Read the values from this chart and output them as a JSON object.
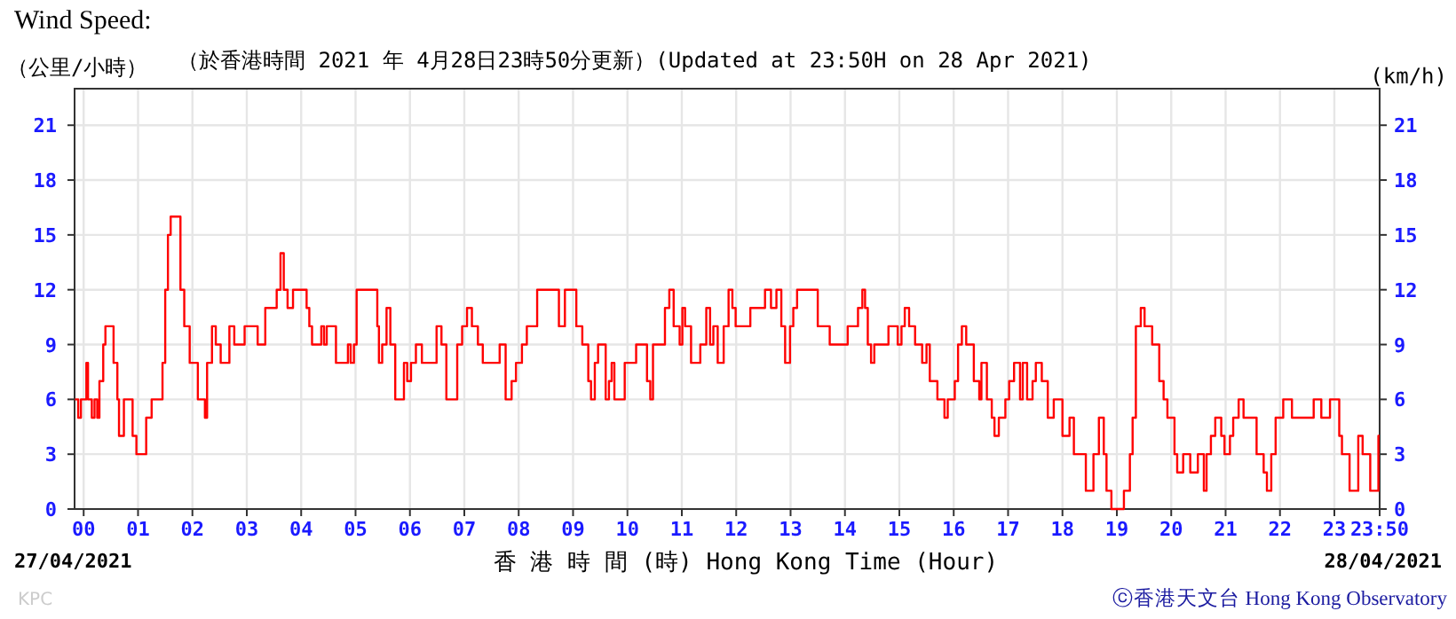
{
  "chart_data": {
    "type": "step",
    "title": "Wind Speed:",
    "subtitle": "（於香港時間 2021 年 4月28日23時50分更新）(Updated at 23:50H on 28 Apr 2021)",
    "ylabel": "（公里/小時）",
    "y2label": "(km/h)",
    "xlabel": "香 港 時 間 (時)  Hong Kong Time (Hour)",
    "annotations": [
      "27/04/2021",
      "28/04/2021",
      "KPC",
      "ⓒ香港天文台 Hong Kong Observatory"
    ],
    "x": [
      -0.16,
      -0.1,
      -0.05,
      0.05,
      0.08,
      0.15,
      0.2,
      0.25,
      0.29,
      0.36,
      0.4,
      0.51,
      0.55,
      0.62,
      0.65,
      0.72,
      0.74,
      0.85,
      0.9,
      0.97,
      1.1,
      1.15,
      1.25,
      1.36,
      1.45,
      1.5,
      1.55,
      1.6,
      1.71,
      1.78,
      1.85,
      1.95,
      2.05,
      2.1,
      2.2,
      2.23,
      2.27,
      2.36,
      2.43,
      2.52,
      2.63,
      2.68,
      2.77,
      2.9,
      2.96,
      3.14,
      3.2,
      3.28,
      3.34,
      3.5,
      3.55,
      3.62,
      3.68,
      3.75,
      3.85,
      4.04,
      4.1,
      4.15,
      4.2,
      4.32,
      4.37,
      4.42,
      4.47,
      4.59,
      4.64,
      4.8,
      4.86,
      4.91,
      4.97,
      5.02,
      5.32,
      5.4,
      5.43,
      5.49,
      5.57,
      5.64,
      5.73,
      5.84,
      5.89,
      5.95,
      6.02,
      6.11,
      6.18,
      6.22,
      6.38,
      6.49,
      6.58,
      6.67,
      6.76,
      6.87,
      6.96,
      7.05,
      7.14,
      7.25,
      7.34,
      7.5,
      7.65,
      7.76,
      7.87,
      7.95,
      8.06,
      8.15,
      8.34,
      8.63,
      8.74,
      8.85,
      8.95,
      9.06,
      9.17,
      9.28,
      9.33,
      9.4,
      9.46,
      9.6,
      9.66,
      9.71,
      9.76,
      9.87,
      9.95,
      10.09,
      10.16,
      10.25,
      10.36,
      10.42,
      10.47,
      10.58,
      10.69,
      10.77,
      10.85,
      10.96,
      11.01,
      11.06,
      11.17,
      11.28,
      11.34,
      11.45,
      11.52,
      11.58,
      11.66,
      11.77,
      11.86,
      11.93,
      11.99,
      12.15,
      12.26,
      12.53,
      12.58,
      12.64,
      12.74,
      12.83,
      12.9,
      12.99,
      13.05,
      13.12,
      13.2,
      13.5,
      13.61,
      13.72,
      14.05,
      14.15,
      14.24,
      14.32,
      14.37,
      14.42,
      14.48,
      14.54,
      14.8,
      14.85,
      14.97,
      15.04,
      15.1,
      15.18,
      15.29,
      15.34,
      15.42,
      15.5,
      15.56,
      15.7,
      15.78,
      15.83,
      15.89,
      16.02,
      16.08,
      16.15,
      16.23,
      16.3,
      16.37,
      16.43,
      16.47,
      16.51,
      16.61,
      16.65,
      16.7,
      16.75,
      16.83,
      16.88,
      16.95,
      17.02,
      17.11,
      17.16,
      17.22,
      17.27,
      17.35,
      17.4,
      17.45,
      17.51,
      17.62,
      17.73,
      17.84,
      18.0,
      18.05,
      18.13,
      18.21,
      18.29,
      18.43,
      18.48,
      18.57,
      18.67,
      18.72,
      18.76,
      18.81,
      18.9,
      19.13,
      19.18,
      19.24,
      19.29,
      19.35,
      19.44,
      19.51,
      19.65,
      19.73,
      19.78,
      19.86,
      19.93,
      20.06,
      20.11,
      20.22,
      20.3,
      20.35,
      20.49,
      20.54,
      20.6,
      20.65,
      20.73,
      20.81,
      20.92,
      20.98,
      21.08,
      21.14,
      21.24,
      21.33,
      21.57,
      21.63,
      21.7,
      21.76,
      21.84,
      21.92,
      22.06,
      22.22,
      22.62,
      22.67,
      22.76,
      22.92,
      23.0,
      23.09,
      23.14,
      23.28,
      23.35,
      23.44,
      23.52,
      23.66,
      23.7,
      23.81
    ],
    "series": [
      {
        "color": "#ff0000",
        "values": [
          6,
          5,
          6,
          8,
          6,
          5,
          6,
          5,
          7,
          9,
          10,
          10,
          8,
          6,
          4,
          4,
          6,
          6,
          4,
          3,
          3,
          5,
          6,
          6,
          8,
          12,
          15,
          16,
          16,
          12,
          10,
          8,
          8,
          6,
          6,
          5,
          8,
          10,
          9,
          8,
          8,
          10,
          9,
          9,
          10,
          10,
          9,
          9,
          11,
          11,
          12,
          14,
          12,
          11,
          12,
          12,
          11,
          10,
          9,
          9,
          10,
          9,
          10,
          10,
          8,
          8,
          9,
          8,
          9,
          12,
          12,
          10,
          8,
          9,
          11,
          9,
          6,
          6,
          8,
          7,
          8,
          9,
          9,
          8,
          8,
          10,
          9,
          6,
          6,
          9,
          10,
          11,
          10,
          9,
          8,
          8,
          9,
          6,
          7,
          8,
          9,
          10,
          12,
          12,
          10,
          12,
          12,
          10,
          9,
          7,
          6,
          8,
          9,
          6,
          7,
          8,
          6,
          6,
          8,
          8,
          9,
          9,
          7,
          6,
          9,
          9,
          11,
          12,
          10,
          9,
          11,
          10,
          8,
          8,
          9,
          11,
          9,
          10,
          8,
          10,
          12,
          11,
          10,
          10,
          11,
          12,
          12,
          11,
          12,
          10,
          8,
          10,
          11,
          12,
          12,
          10,
          10,
          9,
          10,
          10,
          11,
          12,
          11,
          9,
          8,
          9,
          10,
          10,
          9,
          10,
          11,
          10,
          9,
          9,
          8,
          9,
          7,
          6,
          6,
          5,
          6,
          7,
          9,
          10,
          9,
          9,
          7,
          7,
          6,
          8,
          6,
          6,
          5,
          4,
          5,
          5,
          6,
          7,
          8,
          8,
          6,
          8,
          6,
          6,
          7,
          8,
          7,
          5,
          6,
          4,
          4,
          5,
          3,
          3,
          1,
          1,
          3,
          5,
          5,
          3,
          1,
          0,
          1,
          1,
          3,
          5,
          10,
          11,
          10,
          9,
          9,
          7,
          6,
          5,
          3,
          2,
          3,
          3,
          2,
          3,
          3,
          1,
          3,
          4,
          5,
          4,
          3,
          4,
          5,
          6,
          5,
          3,
          3,
          2,
          1,
          3,
          5,
          6,
          5,
          6,
          6,
          5,
          6,
          6,
          4,
          3,
          1,
          1,
          4,
          3,
          1,
          1,
          4
        ]
      }
    ],
    "xlim": [
      -0.167,
      23.833
    ],
    "xticks": [
      {
        "value": 0,
        "label": "00"
      },
      {
        "value": 1,
        "label": "01"
      },
      {
        "value": 2,
        "label": "02"
      },
      {
        "value": 3,
        "label": "03"
      },
      {
        "value": 4,
        "label": "04"
      },
      {
        "value": 5,
        "label": "05"
      },
      {
        "value": 6,
        "label": "06"
      },
      {
        "value": 7,
        "label": "07"
      },
      {
        "value": 8,
        "label": "08"
      },
      {
        "value": 9,
        "label": "09"
      },
      {
        "value": 10,
        "label": "10"
      },
      {
        "value": 11,
        "label": "11"
      },
      {
        "value": 12,
        "label": "12"
      },
      {
        "value": 13,
        "label": "13"
      },
      {
        "value": 14,
        "label": "14"
      },
      {
        "value": 15,
        "label": "15"
      },
      {
        "value": 16,
        "label": "16"
      },
      {
        "value": 17,
        "label": "17"
      },
      {
        "value": 18,
        "label": "18"
      },
      {
        "value": 19,
        "label": "19"
      },
      {
        "value": 20,
        "label": "20"
      },
      {
        "value": 21,
        "label": "21"
      },
      {
        "value": 22,
        "label": "22"
      },
      {
        "value": 23,
        "label": "23"
      },
      {
        "value": 23.833,
        "label": "23:50"
      }
    ],
    "ylim": [
      0,
      23
    ],
    "yticks": [
      0,
      3,
      6,
      9,
      12,
      15,
      18,
      21
    ],
    "y2lim": [
      0,
      23
    ],
    "y2ticks": [
      0,
      3,
      6,
      9,
      12,
      15,
      18,
      21
    ],
    "grid": true
  }
}
